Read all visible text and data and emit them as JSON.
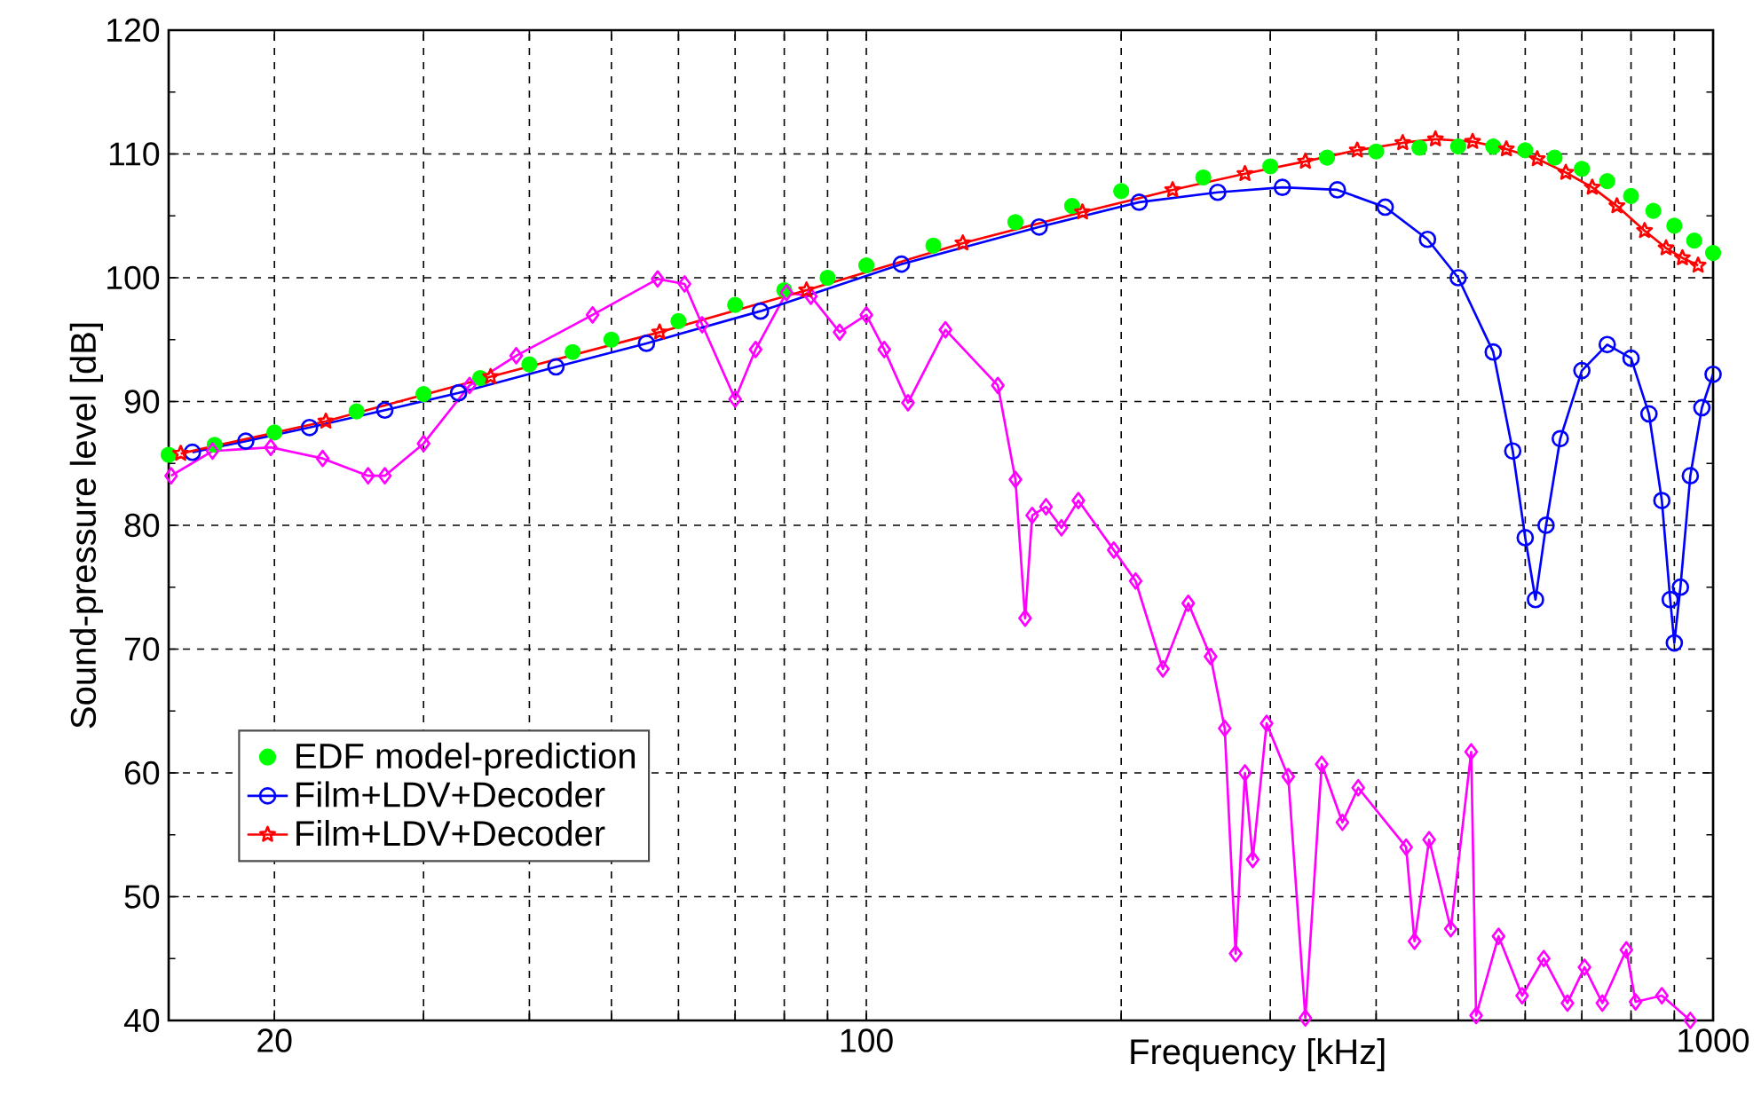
{
  "chart_data": {
    "type": "line",
    "xlabel": "Frequency [kHz]",
    "ylabel": "Sound-pressure level [dB]",
    "log": "x",
    "grid": true,
    "legend": "bottom left",
    "xlim": [
      15,
      1000
    ],
    "ylim": [
      40,
      120
    ],
    "xticks": [
      20,
      {
        "value": 30,
        "label": null
      },
      {
        "value": 40,
        "label": null
      },
      {
        "value": 50,
        "label": null
      },
      {
        "value": 60,
        "label": null
      },
      {
        "value": 70,
        "label": null
      },
      {
        "value": 80,
        "label": null
      },
      {
        "value": 90,
        "label": null
      },
      100,
      {
        "value": 200,
        "label": null
      },
      {
        "value": 300,
        "label": null
      },
      {
        "value": 400,
        "label": null
      },
      {
        "value": 500,
        "label": null
      },
      {
        "value": 600,
        "label": null
      },
      {
        "value": 700,
        "label": null
      },
      {
        "value": 800,
        "label": null
      },
      {
        "value": 900,
        "label": null
      },
      1000
    ],
    "yticks": [
      40,
      50,
      60,
      70,
      80,
      90,
      100,
      110,
      120
    ],
    "series": [
      {
        "name": "EDF model-prediction",
        "type": "scatter",
        "marker": "circle",
        "color": "#00ff00",
        "x": [
          15,
          17,
          20,
          25,
          30,
          35,
          40,
          45,
          50,
          60,
          70,
          80,
          90,
          100,
          120,
          150,
          175,
          200,
          250,
          300,
          350,
          400,
          450,
          500,
          550,
          600,
          650,
          700,
          750,
          800,
          850,
          900,
          950,
          1000
        ],
        "values": [
          85.7,
          86.5,
          87.5,
          89.2,
          90.6,
          91.9,
          93,
          94,
          95,
          96.5,
          97.8,
          99,
          100,
          101,
          102.6,
          104.5,
          105.8,
          107,
          108.1,
          109,
          109.7,
          110.2,
          110.5,
          110.6,
          110.6,
          110.3,
          109.7,
          108.8,
          107.8,
          106.6,
          105.4,
          104.2,
          103,
          102
        ]
      },
      {
        "marker": "diamond",
        "color": "#ff00ff",
        "x": [
          15.1,
          16.9,
          19.8,
          22.8,
          25.8,
          27,
          30,
          34,
          38.6,
          47.5,
          56.7,
          61,
          64,
          70,
          74,
          80.5,
          86,
          93,
          100,
          105,
          112,
          124,
          143,
          150,
          154,
          157,
          163,
          170,
          178,
          196,
          208,
          224,
          240,
          255,
          265,
          273,
          280,
          286,
          297,
          315,
          330,
          345,
          365,
          381,
          434,
          444,
          462,
          490,
          518,
          525,
          558,
          595,
          631,
          673,
          705,
          740,
          790,
          810,
          870,
          940
        ],
        "values": [
          84,
          86,
          86.3,
          85.4,
          84,
          84,
          86.6,
          91.3,
          93.7,
          97,
          99.9,
          99.5,
          96.2,
          90.2,
          94.2,
          98.8,
          98.5,
          95.6,
          97,
          94.2,
          89.9,
          95.8,
          91.3,
          83.7,
          72.5,
          80.8,
          81.5,
          79.8,
          82,
          78,
          75.5,
          68.4,
          73.7,
          69.4,
          63.6,
          45.4,
          60,
          53,
          64,
          59.7,
          40.2,
          60.7,
          56,
          58.8,
          54,
          46.4,
          54.6,
          47.4,
          61.7,
          40.4,
          46.8,
          42,
          45,
          41.4,
          44.3,
          41.4,
          45.7,
          41.5,
          42,
          40
        ]
      },
      {
        "name": "Film+LDV+Decoder",
        "marker": "circle",
        "color": "#0000ff",
        "x": [
          16,
          18.5,
          22,
          27,
          33,
          43,
          55,
          75,
          110,
          160,
          210,
          260,
          310,
          360,
          410,
          460,
          500,
          550,
          580,
          600,
          617,
          635,
          660,
          700,
          750,
          800,
          840,
          870,
          890,
          900,
          915,
          940,
          970,
          1000
        ],
        "values": [
          85.9,
          86.8,
          87.9,
          89.3,
          90.7,
          92.8,
          94.7,
          97.3,
          101.1,
          104.1,
          106.1,
          106.9,
          107.3,
          107.1,
          105.7,
          103.1,
          100,
          94,
          86,
          79,
          74,
          80,
          87,
          92.5,
          94.6,
          93.5,
          89,
          82,
          74,
          70.5,
          75,
          84,
          89.5,
          92.2
        ]
      },
      {
        "name": "Film+LDV+Decoder",
        "marker": "star",
        "color": "#ff0000",
        "x": [
          15.5,
          23,
          36,
          57,
          85,
          130,
          180,
          230,
          280,
          330,
          380,
          430,
          470,
          520,
          570,
          620,
          670,
          720,
          770,
          830,
          880,
          920,
          960
        ],
        "values": [
          85.8,
          88.4,
          92,
          95.6,
          99,
          102.8,
          105.3,
          107.1,
          108.4,
          109.4,
          110.3,
          110.9,
          111.2,
          111,
          110.4,
          109.6,
          108.5,
          107.3,
          105.8,
          103.8,
          102.4,
          101.6,
          101
        ]
      }
    ]
  }
}
